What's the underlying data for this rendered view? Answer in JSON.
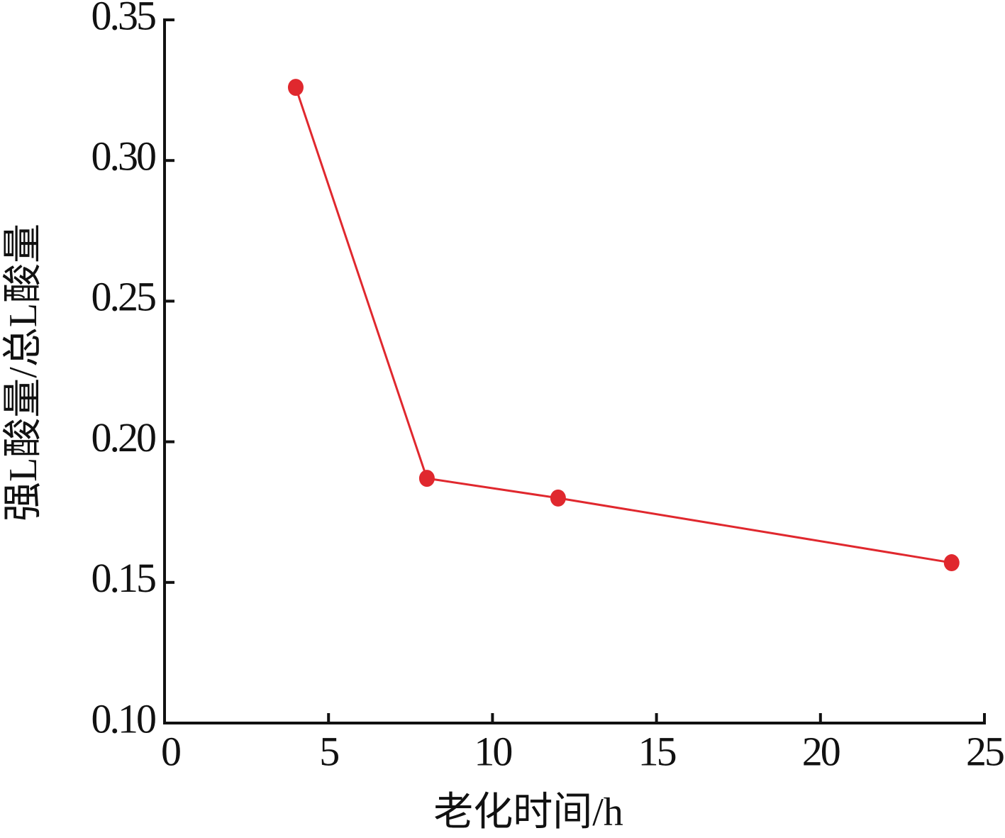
{
  "chart_data": {
    "type": "line",
    "xlabel": "老化时间/h",
    "ylabel": "强L酸量/总L酸量",
    "x": [
      4,
      8,
      12,
      24
    ],
    "series": [
      {
        "color": "#e0282e",
        "values": [
          0.326,
          0.187,
          0.18,
          0.157
        ]
      }
    ],
    "xlim": [
      0,
      25
    ],
    "xticks": [
      0,
      5,
      10,
      15,
      20,
      25
    ],
    "ylim": [
      0.1,
      0.35
    ],
    "yticks": [
      {
        "value": 0.1,
        "label": "0.10"
      },
      0.15,
      {
        "value": 0.2,
        "label": "0.20"
      },
      0.25,
      {
        "value": 0.3,
        "label": "0.30"
      },
      0.35
    ],
    "grid": false
  }
}
